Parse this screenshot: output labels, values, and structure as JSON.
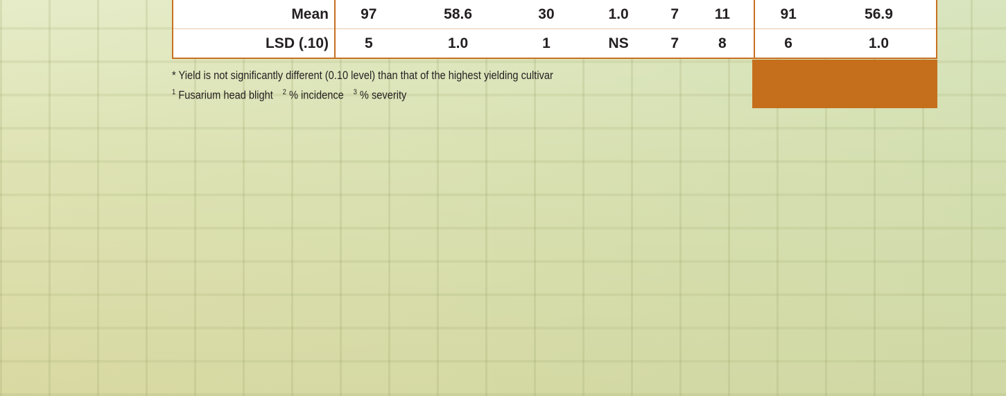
{
  "table": {
    "rows": [
      {
        "label": "Mean",
        "cells": [
          "97",
          "58.6",
          "30",
          "1.0",
          "7",
          "11",
          "91",
          "56.9"
        ]
      },
      {
        "label": "LSD (.10)",
        "cells": [
          "5",
          "1.0",
          "1",
          "NS",
          "7",
          "8",
          "6",
          "1.0"
        ]
      }
    ]
  },
  "footnotes": {
    "note": "* Yield is not significantly different (0.10 level) than that of the highest yielding cultivar",
    "items": [
      {
        "sup": "1",
        "text": "Fusarium head blight"
      },
      {
        "sup": "2",
        "text": "% incidence"
      },
      {
        "sup": "3",
        "text": "% severity"
      }
    ]
  }
}
